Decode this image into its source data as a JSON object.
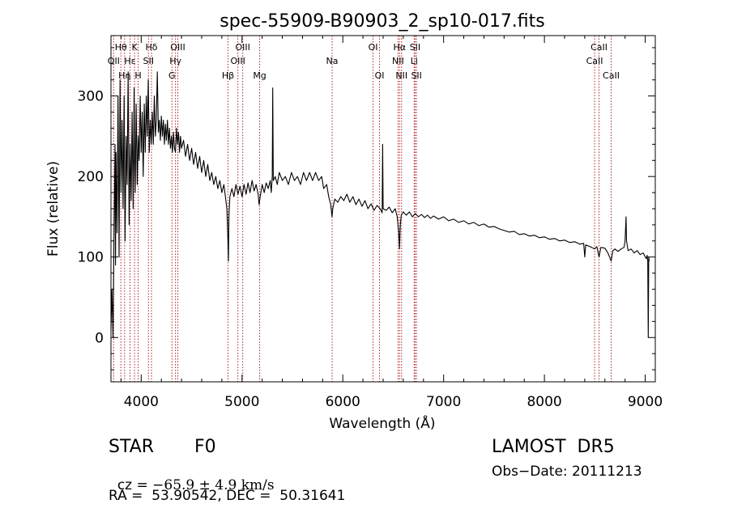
{
  "chart_data": {
    "type": "line",
    "title": "spec-55909-B90903_2_sp10-017.fits",
    "xlabel": "Wavelength (Å)",
    "ylabel": "Flux (relative)",
    "xlim": [
      3700,
      9100
    ],
    "ylim": [
      -55,
      375
    ],
    "x_ticks": [
      4000,
      5000,
      6000,
      7000,
      8000,
      9000
    ],
    "y_ticks": [
      0,
      100,
      200,
      300
    ],
    "grid": false,
    "series_color": "#000000",
    "line_marker_color": "#b22222",
    "lines": [
      {
        "label": "Hθ",
        "wavelength": 3798,
        "row": 1
      },
      {
        "label": "OII",
        "wavelength": 3727,
        "row": 2
      },
      {
        "label": "Hη",
        "wavelength": 3835,
        "row": 3
      },
      {
        "label": "K",
        "wavelength": 3934,
        "row": 1
      },
      {
        "label": "Hε",
        "wavelength": 3889,
        "row": 2
      },
      {
        "label": "H",
        "wavelength": 3969,
        "row": 3
      },
      {
        "label": "Hδ",
        "wavelength": 4102,
        "row": 1
      },
      {
        "label": "SII",
        "wavelength": 4072,
        "row": 2
      },
      {
        "label": "OIII",
        "wavelength": 4363,
        "row": 1
      },
      {
        "label": "Hγ",
        "wavelength": 4340,
        "row": 2
      },
      {
        "label": "G",
        "wavelength": 4305,
        "row": 3
      },
      {
        "label": "OIII",
        "wavelength": 5007,
        "row": 1
      },
      {
        "label": "OIII",
        "wavelength": 4959,
        "row": 2
      },
      {
        "label": "Hβ",
        "wavelength": 4861,
        "row": 3
      },
      {
        "label": "Mg",
        "wavelength": 5175,
        "row": 3
      },
      {
        "label": "Na",
        "wavelength": 5894,
        "row": 2
      },
      {
        "label": "OI",
        "wavelength": 6300,
        "row": 1
      },
      {
        "label": "OI",
        "wavelength": 6364,
        "row": 3
      },
      {
        "label": "Hα",
        "wavelength": 6563,
        "row": 1
      },
      {
        "label": "NII",
        "wavelength": 6548,
        "row": 2
      },
      {
        "label": "NII",
        "wavelength": 6583,
        "row": 3
      },
      {
        "label": "SII",
        "wavelength": 6717,
        "row": 1
      },
      {
        "label": "Li",
        "wavelength": 6708,
        "row": 2
      },
      {
        "label": "SII",
        "wavelength": 6731,
        "row": 3
      },
      {
        "label": "CaII",
        "wavelength": 8542,
        "row": 1
      },
      {
        "label": "CaII",
        "wavelength": 8498,
        "row": 2
      },
      {
        "label": "CaII",
        "wavelength": 8662,
        "row": 3
      }
    ],
    "series": [
      {
        "values": [
          [
            3700,
            10
          ],
          [
            3710,
            60
          ],
          [
            3720,
            0
          ],
          [
            3730,
            120
          ],
          [
            3740,
            240
          ],
          [
            3745,
            90
          ],
          [
            3750,
            230
          ],
          [
            3760,
            130
          ],
          [
            3770,
            300
          ],
          [
            3780,
            100
          ],
          [
            3790,
            320
          ],
          [
            3800,
            180
          ],
          [
            3810,
            270
          ],
          [
            3820,
            160
          ],
          [
            3830,
            300
          ],
          [
            3840,
            120
          ],
          [
            3850,
            250
          ],
          [
            3860,
            190
          ],
          [
            3870,
            330
          ],
          [
            3880,
            140
          ],
          [
            3890,
            240
          ],
          [
            3900,
            170
          ],
          [
            3910,
            280
          ],
          [
            3920,
            160
          ],
          [
            3930,
            310
          ],
          [
            3935,
            220
          ],
          [
            3940,
            180
          ],
          [
            3950,
            290
          ],
          [
            3960,
            190
          ],
          [
            3970,
            250
          ],
          [
            3980,
            220
          ],
          [
            3990,
            300
          ],
          [
            4000,
            230
          ],
          [
            4010,
            280
          ],
          [
            4020,
            200
          ],
          [
            4030,
            290
          ],
          [
            4040,
            230
          ],
          [
            4050,
            300
          ],
          [
            4060,
            250
          ],
          [
            4070,
            320
          ],
          [
            4080,
            230
          ],
          [
            4090,
            270
          ],
          [
            4100,
            240
          ],
          [
            4110,
            280
          ],
          [
            4120,
            240
          ],
          [
            4130,
            300
          ],
          [
            4140,
            250
          ],
          [
            4150,
            270
          ],
          [
            4160,
            330
          ],
          [
            4170,
            255
          ],
          [
            4180,
            270
          ],
          [
            4190,
            245
          ],
          [
            4200,
            275
          ],
          [
            4210,
            250
          ],
          [
            4220,
            270
          ],
          [
            4230,
            240
          ],
          [
            4240,
            265
          ],
          [
            4250,
            245
          ],
          [
            4260,
            270
          ],
          [
            4270,
            240
          ],
          [
            4280,
            260
          ],
          [
            4290,
            235
          ],
          [
            4300,
            250
          ],
          [
            4310,
            230
          ],
          [
            4320,
            255
          ],
          [
            4330,
            235
          ],
          [
            4340,
            230
          ],
          [
            4350,
            260
          ],
          [
            4360,
            240
          ],
          [
            4370,
            255
          ],
          [
            4380,
            230
          ],
          [
            4390,
            250
          ],
          [
            4400,
            235
          ],
          [
            4420,
            245
          ],
          [
            4440,
            225
          ],
          [
            4460,
            240
          ],
          [
            4480,
            220
          ],
          [
            4500,
            235
          ],
          [
            4520,
            215
          ],
          [
            4540,
            230
          ],
          [
            4560,
            210
          ],
          [
            4580,
            225
          ],
          [
            4600,
            205
          ],
          [
            4620,
            220
          ],
          [
            4640,
            200
          ],
          [
            4660,
            215
          ],
          [
            4680,
            195
          ],
          [
            4700,
            205
          ],
          [
            4720,
            190
          ],
          [
            4740,
            200
          ],
          [
            4760,
            185
          ],
          [
            4780,
            195
          ],
          [
            4800,
            180
          ],
          [
            4820,
            190
          ],
          [
            4840,
            170
          ],
          [
            4850,
            160
          ],
          [
            4860,
            120
          ],
          [
            4865,
            95
          ],
          [
            4870,
            150
          ],
          [
            4880,
            175
          ],
          [
            4900,
            185
          ],
          [
            4920,
            175
          ],
          [
            4940,
            190
          ],
          [
            4960,
            178
          ],
          [
            4980,
            188
          ],
          [
            5000,
            175
          ],
          [
            5020,
            190
          ],
          [
            5040,
            178
          ],
          [
            5060,
            192
          ],
          [
            5080,
            180
          ],
          [
            5100,
            195
          ],
          [
            5120,
            182
          ],
          [
            5140,
            190
          ],
          [
            5160,
            178
          ],
          [
            5170,
            165
          ],
          [
            5180,
            175
          ],
          [
            5200,
            190
          ],
          [
            5220,
            180
          ],
          [
            5240,
            192
          ],
          [
            5260,
            185
          ],
          [
            5280,
            195
          ],
          [
            5290,
            180
          ],
          [
            5300,
            200
          ],
          [
            5305,
            310
          ],
          [
            5310,
            195
          ],
          [
            5330,
            200
          ],
          [
            5350,
            190
          ],
          [
            5370,
            205
          ],
          [
            5400,
            195
          ],
          [
            5430,
            200
          ],
          [
            5460,
            190
          ],
          [
            5490,
            205
          ],
          [
            5520,
            195
          ],
          [
            5550,
            200
          ],
          [
            5580,
            190
          ],
          [
            5610,
            205
          ],
          [
            5640,
            195
          ],
          [
            5670,
            205
          ],
          [
            5700,
            195
          ],
          [
            5730,
            205
          ],
          [
            5760,
            195
          ],
          [
            5790,
            200
          ],
          [
            5810,
            185
          ],
          [
            5840,
            190
          ],
          [
            5860,
            175
          ],
          [
            5880,
            165
          ],
          [
            5893,
            150
          ],
          [
            5900,
            160
          ],
          [
            5920,
            172
          ],
          [
            5950,
            168
          ],
          [
            5980,
            175
          ],
          [
            6010,
            170
          ],
          [
            6040,
            178
          ],
          [
            6070,
            168
          ],
          [
            6100,
            175
          ],
          [
            6130,
            165
          ],
          [
            6160,
            172
          ],
          [
            6190,
            163
          ],
          [
            6220,
            170
          ],
          [
            6250,
            160
          ],
          [
            6280,
            166
          ],
          [
            6310,
            158
          ],
          [
            6340,
            164
          ],
          [
            6370,
            160
          ],
          [
            6390,
            155
          ],
          [
            6395,
            240
          ],
          [
            6400,
            160
          ],
          [
            6430,
            158
          ],
          [
            6460,
            162
          ],
          [
            6490,
            155
          ],
          [
            6520,
            160
          ],
          [
            6540,
            150
          ],
          [
            6555,
            130
          ],
          [
            6563,
            110
          ],
          [
            6570,
            140
          ],
          [
            6580,
            152
          ],
          [
            6600,
            156
          ],
          [
            6630,
            152
          ],
          [
            6660,
            156
          ],
          [
            6690,
            150
          ],
          [
            6720,
            154
          ],
          [
            6750,
            150
          ],
          [
            6780,
            153
          ],
          [
            6810,
            149
          ],
          [
            6840,
            152
          ],
          [
            6870,
            148
          ],
          [
            6900,
            151
          ],
          [
            6950,
            147
          ],
          [
            7000,
            150
          ],
          [
            7050,
            145
          ],
          [
            7100,
            147
          ],
          [
            7150,
            143
          ],
          [
            7200,
            145
          ],
          [
            7250,
            141
          ],
          [
            7300,
            143
          ],
          [
            7350,
            139
          ],
          [
            7400,
            141
          ],
          [
            7450,
            137
          ],
          [
            7500,
            138
          ],
          [
            7550,
            135
          ],
          [
            7600,
            133
          ],
          [
            7650,
            131
          ],
          [
            7700,
            132
          ],
          [
            7750,
            128
          ],
          [
            7800,
            129
          ],
          [
            7850,
            126
          ],
          [
            7900,
            127
          ],
          [
            7950,
            124
          ],
          [
            8000,
            125
          ],
          [
            8050,
            122
          ],
          [
            8100,
            123
          ],
          [
            8150,
            120
          ],
          [
            8200,
            121
          ],
          [
            8250,
            118
          ],
          [
            8300,
            119
          ],
          [
            8350,
            116
          ],
          [
            8390,
            117
          ],
          [
            8400,
            100
          ],
          [
            8410,
            115
          ],
          [
            8450,
            113
          ],
          [
            8500,
            110
          ],
          [
            8520,
            113
          ],
          [
            8542,
            100
          ],
          [
            8560,
            112
          ],
          [
            8600,
            111
          ],
          [
            8630,
            105
          ],
          [
            8662,
            95
          ],
          [
            8680,
            108
          ],
          [
            8700,
            110
          ],
          [
            8730,
            107
          ],
          [
            8760,
            110
          ],
          [
            8790,
            112
          ],
          [
            8800,
            120
          ],
          [
            8810,
            150
          ],
          [
            8815,
            120
          ],
          [
            8830,
            108
          ],
          [
            8860,
            110
          ],
          [
            8890,
            105
          ],
          [
            8920,
            108
          ],
          [
            8950,
            103
          ],
          [
            8980,
            105
          ],
          [
            9010,
            98
          ],
          [
            9020,
            102
          ],
          [
            9025,
            95
          ],
          [
            9030,
            0
          ],
          [
            9035,
            100
          ],
          [
            9040,
            95
          ]
        ]
      }
    ]
  },
  "info": {
    "object_class": "STAR",
    "subclass": "F0",
    "survey": "LAMOST  DR5",
    "cz_label": "cz = ",
    "cz_value": "−65.9 ± 4.9 km/s",
    "obs_date": "Obs−Date: 20111213",
    "coords": "RA =  53.90542, DEC =  50.31641"
  }
}
